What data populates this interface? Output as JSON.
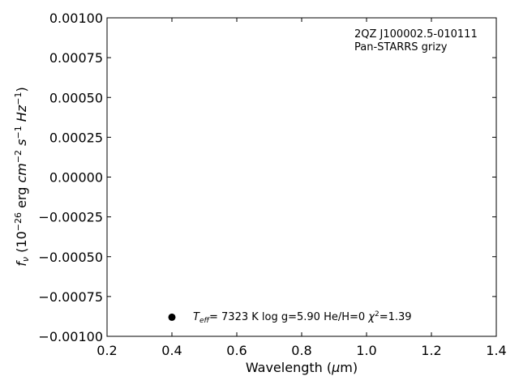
{
  "chart_data": {
    "type": "scatter",
    "xlabel": "Wavelength (μm)",
    "ylabel": "fν (10⁻²⁶ erg cm⁻² s⁻¹ Hz⁻¹)",
    "xlim": [
      0.2,
      1.4
    ],
    "ylim": [
      -0.001,
      0.001
    ],
    "x_ticks": [
      "0.2",
      "0.4",
      "0.6",
      "0.8",
      "1.0",
      "1.2",
      "1.4"
    ],
    "y_ticks": [
      "0.00100",
      "0.00075",
      "0.00050",
      "0.00025",
      "0.00000",
      "−0.00025",
      "−0.00050",
      "−0.00075",
      "−0.00100"
    ],
    "grid": false,
    "annotations": {
      "object_name": "2QZ J100002.5-010111",
      "filters": "Pan-STARRS grizy",
      "fit_summary": "Teff=  7323 K  log g=5.90  He/H=0  χ²=1.39"
    },
    "legend_marker": {
      "x": 0.4,
      "y": -0.00088,
      "color": "#000000"
    },
    "colors": {
      "axes": "#000000",
      "marker": "#000000"
    }
  }
}
